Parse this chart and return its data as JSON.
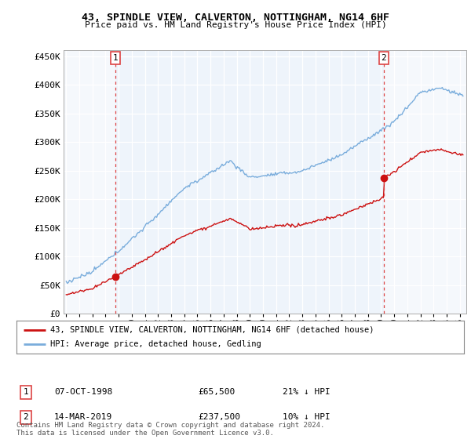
{
  "title": "43, SPINDLE VIEW, CALVERTON, NOTTINGHAM, NG14 6HF",
  "subtitle": "Price paid vs. HM Land Registry's House Price Index (HPI)",
  "ylabel_ticks": [
    "£0",
    "£50K",
    "£100K",
    "£150K",
    "£200K",
    "£250K",
    "£300K",
    "£350K",
    "£400K",
    "£450K"
  ],
  "ytick_values": [
    0,
    50000,
    100000,
    150000,
    200000,
    250000,
    300000,
    350000,
    400000,
    450000
  ],
  "ylim": [
    0,
    460000
  ],
  "xlim_start": 1994.8,
  "xlim_end": 2025.5,
  "hpi_color": "#7aaddc",
  "hpi_fill_color": "#ddeeff",
  "price_color": "#cc1111",
  "vline_color": "#dd4444",
  "background_color": "#ffffff",
  "grid_color": "#cccccc",
  "point1_x": 1998.77,
  "point1_y": 65500,
  "point1_label": "1",
  "point1_date": "07-OCT-1998",
  "point1_price": "£65,500",
  "point1_hpi": "21% ↓ HPI",
  "point2_x": 2019.2,
  "point2_y": 237500,
  "point2_label": "2",
  "point2_date": "14-MAR-2019",
  "point2_price": "£237,500",
  "point2_hpi": "10% ↓ HPI",
  "legend_line1": "43, SPINDLE VIEW, CALVERTON, NOTTINGHAM, NG14 6HF (detached house)",
  "legend_line2": "HPI: Average price, detached house, Gedling",
  "footnote": "Contains HM Land Registry data © Crown copyright and database right 2024.\nThis data is licensed under the Open Government Licence v3.0.",
  "xtick_years": [
    1995,
    1996,
    1997,
    1998,
    1999,
    2000,
    2001,
    2002,
    2003,
    2004,
    2005,
    2006,
    2007,
    2008,
    2009,
    2010,
    2011,
    2012,
    2013,
    2014,
    2015,
    2016,
    2017,
    2018,
    2019,
    2020,
    2021,
    2022,
    2023,
    2024,
    2025
  ]
}
